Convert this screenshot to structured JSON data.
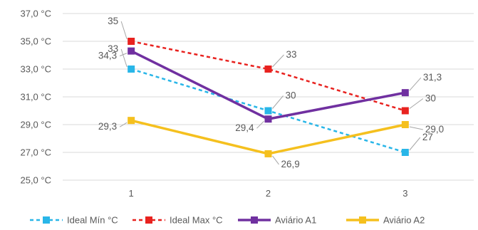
{
  "chart_data": {
    "type": "line",
    "categories": [
      "1",
      "2",
      "3"
    ],
    "y_ticks": [
      "25,0 °C",
      "27,0 °C",
      "29,0 °C",
      "31,0 °C",
      "33,0 °C",
      "35,0 °C",
      "37,0 °C"
    ],
    "ylim": [
      25,
      37
    ],
    "grid": true,
    "legend_position": "bottom",
    "series": [
      {
        "name": "Ideal Mín °C",
        "values": [
          33,
          30,
          27
        ],
        "labels": [
          "33",
          "30",
          "27"
        ],
        "color": "#29B6E8",
        "dashed": true
      },
      {
        "name": "Ideal Max °C",
        "values": [
          35,
          33,
          30
        ],
        "labels": [
          "35",
          "33",
          "30"
        ],
        "color": "#E8221F",
        "dashed": true
      },
      {
        "name": "Aviário A1",
        "values": [
          34.3,
          29.4,
          31.3
        ],
        "labels": [
          "34,3",
          "29,4",
          "31,3"
        ],
        "color": "#7030A0",
        "dashed": false
      },
      {
        "name": "Aviário A2",
        "values": [
          29.3,
          26.9,
          29.0
        ],
        "labels": [
          "29,3",
          "26,9",
          "29,0"
        ],
        "color": "#F5C01E",
        "dashed": false
      }
    ]
  }
}
